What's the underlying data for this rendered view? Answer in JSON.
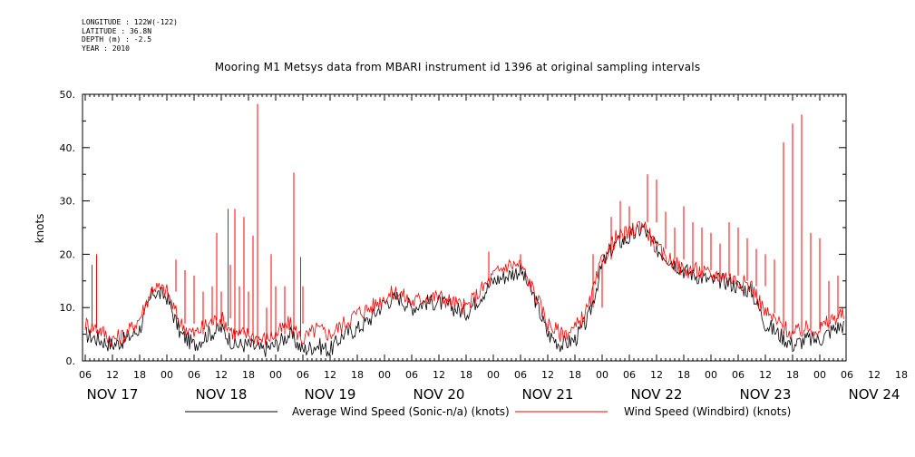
{
  "meta": {
    "lines": [
      "LONGITUDE : 122W(-122)",
      "LATITUDE : 36.8N",
      "DEPTH (m) : -2.5",
      "YEAR : 2010"
    ]
  },
  "chart_data": {
    "type": "line",
    "title": "Mooring M1 Metsys data from MBARI instrument id 1396 at original sampling intervals",
    "ylabel": "knots",
    "xlabel": "",
    "ylim": [
      0,
      50
    ],
    "yticks": [
      "0.",
      "10.",
      "20.",
      "30.",
      "40.",
      "50."
    ],
    "x_hour_labels": [
      "06",
      "12",
      "18",
      "00",
      "06",
      "12",
      "18",
      "00",
      "06",
      "12",
      "18",
      "00",
      "06",
      "12",
      "18",
      "00",
      "06",
      "12",
      "18",
      "00",
      "06",
      "12",
      "18",
      "00",
      "06",
      "12",
      "18",
      "00",
      "06",
      "12",
      "18",
      "00",
      "06"
    ],
    "x_day_labels": [
      "NOV 17",
      "NOV 18",
      "NOV 19",
      "NOV 20",
      "NOV 21",
      "NOV 22",
      "NOV 23",
      "NOV 24"
    ],
    "legend_position": "bottom",
    "series": [
      {
        "name": "Average Wind Speed (Sonic-n/a) (knots)",
        "color": "#000000",
        "x_hours": [
          0,
          3,
          6,
          9,
          12,
          15,
          18,
          21,
          24,
          27,
          30,
          33,
          36,
          39,
          42,
          45,
          48,
          51,
          54,
          57,
          60,
          63,
          66,
          69,
          72,
          75,
          78,
          81,
          84,
          87,
          90,
          93,
          96,
          99,
          102,
          105,
          108,
          111,
          114,
          117,
          120,
          123,
          126,
          129,
          132,
          135,
          138,
          141,
          144,
          147,
          150,
          153,
          156,
          159,
          162,
          165,
          168,
          171,
          174,
          177,
          180,
          183,
          186,
          189,
          192
        ],
        "values": [
          5,
          4,
          3,
          4,
          6,
          13,
          12,
          5,
          3,
          5,
          6,
          3,
          3,
          2,
          3,
          5,
          2,
          3,
          2,
          5,
          6,
          8,
          11,
          12,
          10,
          11,
          11,
          10,
          9,
          12,
          15,
          16,
          17,
          12,
          5,
          3,
          4,
          8,
          18,
          22,
          23,
          25,
          21,
          19,
          17,
          16,
          15,
          15,
          14,
          13,
          7,
          5,
          3,
          4,
          4,
          6,
          7,
          8,
          10,
          12,
          14,
          15,
          14,
          17,
          22
        ]
      },
      {
        "name": "Wind Speed (Windbird) (knots)",
        "color": "#ff0000",
        "x_hours": [
          0,
          3,
          6,
          9,
          12,
          15,
          18,
          21,
          24,
          27,
          30,
          33,
          36,
          39,
          42,
          45,
          48,
          51,
          54,
          57,
          60,
          63,
          66,
          69,
          72,
          75,
          78,
          81,
          84,
          87,
          90,
          93,
          96,
          99,
          102,
          105,
          108,
          111,
          114,
          117,
          120,
          123,
          126,
          129,
          132,
          135,
          138,
          141,
          144,
          147,
          150,
          153,
          156,
          159,
          162,
          165,
          168,
          171,
          174,
          177,
          180,
          183,
          186,
          189,
          192
        ],
        "values": [
          7,
          6,
          4,
          5,
          8,
          14,
          13,
          7,
          5,
          7,
          8,
          5,
          5,
          4,
          5,
          7,
          4,
          6,
          5,
          7,
          9,
          10,
          12,
          13,
          11,
          12,
          12,
          11,
          10,
          13,
          16,
          18,
          18,
          13,
          7,
          5,
          6,
          10,
          19,
          23,
          24,
          26,
          21,
          19,
          17,
          17,
          16,
          16,
          15,
          14,
          9,
          7,
          5,
          6,
          6,
          8,
          9,
          10,
          12,
          13,
          15,
          16,
          15,
          19,
          23
        ],
        "spikes": [
          {
            "x_hour": 1.5,
            "value": 18
          },
          {
            "x_hour": 2.5,
            "value": 20
          },
          {
            "x_hour": 29,
            "value": 24
          },
          {
            "x_hour": 31.5,
            "value": 28.5
          },
          {
            "x_hour": 33,
            "value": 28.5
          },
          {
            "x_hour": 35,
            "value": 27
          },
          {
            "x_hour": 37,
            "value": 23.5
          },
          {
            "x_hour": 38,
            "value": 48.2
          },
          {
            "x_hour": 41,
            "value": 20
          },
          {
            "x_hour": 46,
            "value": 35.3
          },
          {
            "x_hour": 47.5,
            "value": 19.5
          },
          {
            "x_hour": 89,
            "value": 20.5
          },
          {
            "x_hour": 96,
            "value": 20
          },
          {
            "x_hour": 154,
            "value": 41
          },
          {
            "x_hour": 156,
            "value": 44.5
          },
          {
            "x_hour": 158,
            "value": 46.2
          },
          {
            "x_hour": 160,
            "value": 24
          },
          {
            "x_hour": 162,
            "value": 23
          }
        ]
      }
    ]
  }
}
